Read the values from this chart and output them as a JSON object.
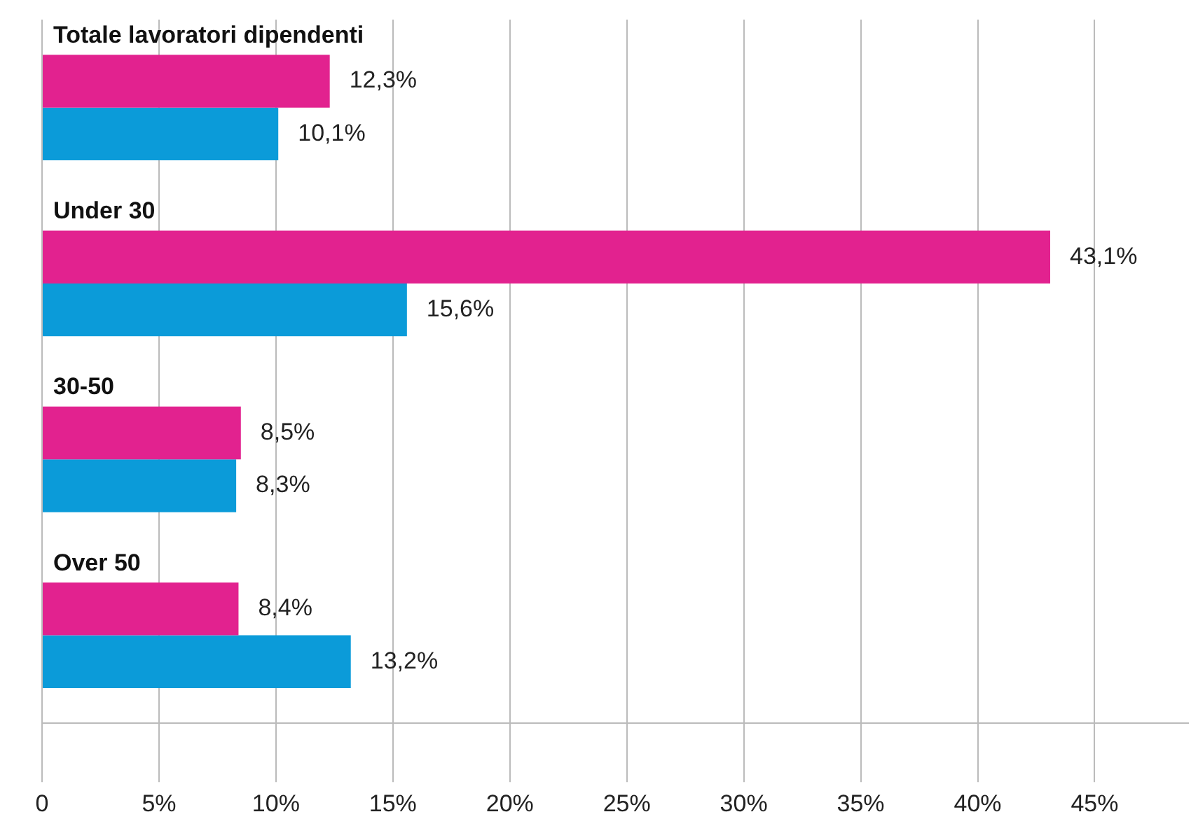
{
  "chart_data": {
    "type": "bar",
    "orientation": "horizontal",
    "categories": [
      "Totale lavoratori dipendenti",
      "Under 30",
      "30-50",
      "Over 50"
    ],
    "series": [
      {
        "color": "#e2228f",
        "values": [
          12.3,
          43.1,
          8.5,
          8.4
        ],
        "value_labels": [
          "12,3%",
          "43,1%",
          "8,5%",
          "8,4%"
        ]
      },
      {
        "color": "#0b9bd9",
        "values": [
          10.1,
          15.6,
          8.3,
          13.2
        ],
        "value_labels": [
          "10,1%",
          "15,6%",
          "8,3%",
          "13,2%"
        ]
      }
    ],
    "xlim": [
      0,
      49
    ],
    "xticks": [
      {
        "value": 0,
        "label": "0"
      },
      {
        "value": 5,
        "label": "5%"
      },
      {
        "value": 10,
        "label": "10%"
      },
      {
        "value": 15,
        "label": "15%"
      },
      {
        "value": 20,
        "label": "20%"
      },
      {
        "value": 25,
        "label": "25%"
      },
      {
        "value": 30,
        "label": "30%"
      },
      {
        "value": 35,
        "label": "35%"
      },
      {
        "value": 40,
        "label": "40%"
      },
      {
        "value": 45,
        "label": "45%"
      }
    ],
    "grid": "x",
    "legend": false
  }
}
